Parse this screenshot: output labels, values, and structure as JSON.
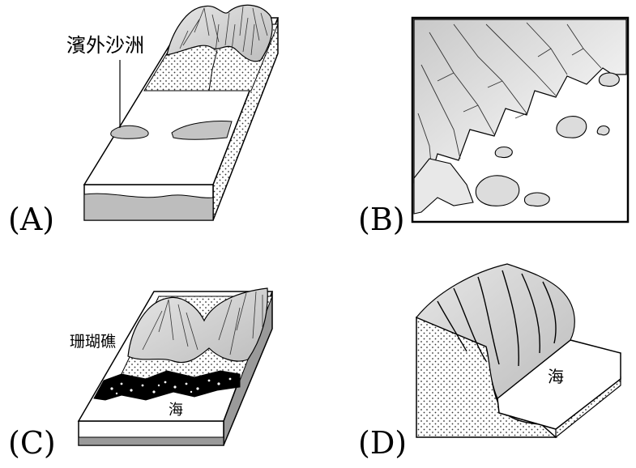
{
  "panels": {
    "a": {
      "letter": "(A)",
      "callout": "濱外沙洲"
    },
    "b": {
      "letter": "(B)"
    },
    "c": {
      "letter": "(C)",
      "callout": "珊瑚礁",
      "sea_label": "海"
    },
    "d": {
      "letter": "(D)",
      "sea_label": "海"
    }
  }
}
